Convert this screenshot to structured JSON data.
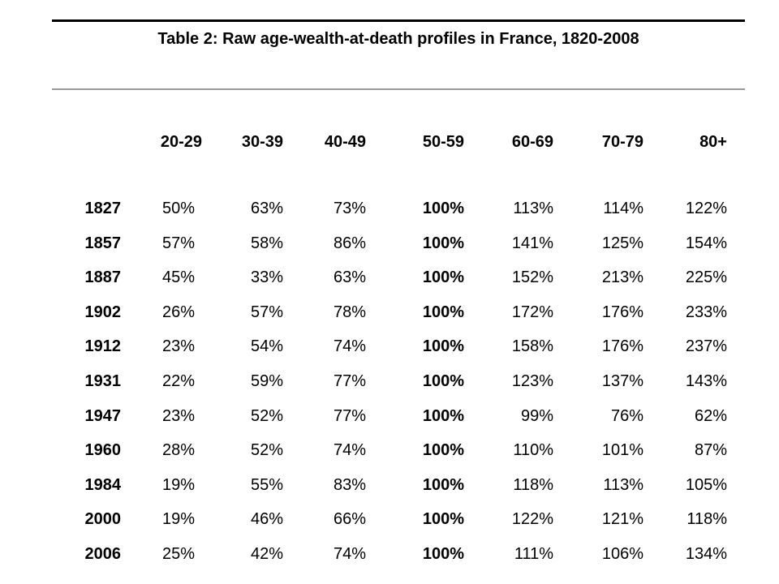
{
  "title": "Table 2: Raw age-wealth-at-death profiles in France, 1820-2008",
  "columns": [
    "",
    "20-29",
    "30-39",
    "40-49",
    "50-59",
    "60-69",
    "70-79",
    "80+"
  ],
  "rows": [
    {
      "year": "1827",
      "values": [
        "50%",
        "63%",
        "73%",
        "100%",
        "113%",
        "114%",
        "122%"
      ]
    },
    {
      "year": "1857",
      "values": [
        "57%",
        "58%",
        "86%",
        "100%",
        "141%",
        "125%",
        "154%"
      ]
    },
    {
      "year": "1887",
      "values": [
        "45%",
        "33%",
        "63%",
        "100%",
        "152%",
        "213%",
        "225%"
      ]
    },
    {
      "year": "1902",
      "values": [
        "26%",
        "57%",
        "78%",
        "100%",
        "172%",
        "176%",
        "233%"
      ]
    },
    {
      "year": "1912",
      "values": [
        "23%",
        "54%",
        "74%",
        "100%",
        "158%",
        "176%",
        "237%"
      ]
    },
    {
      "year": "1931",
      "values": [
        "22%",
        "59%",
        "77%",
        "100%",
        "123%",
        "137%",
        "143%"
      ]
    },
    {
      "year": "1947",
      "values": [
        "23%",
        "52%",
        "77%",
        "100%",
        "99%",
        "76%",
        "62%"
      ]
    },
    {
      "year": "1960",
      "values": [
        "28%",
        "52%",
        "74%",
        "100%",
        "110%",
        "101%",
        "87%"
      ]
    },
    {
      "year": "1984",
      "values": [
        "19%",
        "55%",
        "83%",
        "100%",
        "118%",
        "113%",
        "105%"
      ]
    },
    {
      "year": "2000",
      "values": [
        "19%",
        "46%",
        "66%",
        "100%",
        "122%",
        "121%",
        "118%"
      ]
    },
    {
      "year": "2006",
      "values": [
        "25%",
        "42%",
        "74%",
        "100%",
        "111%",
        "106%",
        "134%"
      ]
    }
  ]
}
